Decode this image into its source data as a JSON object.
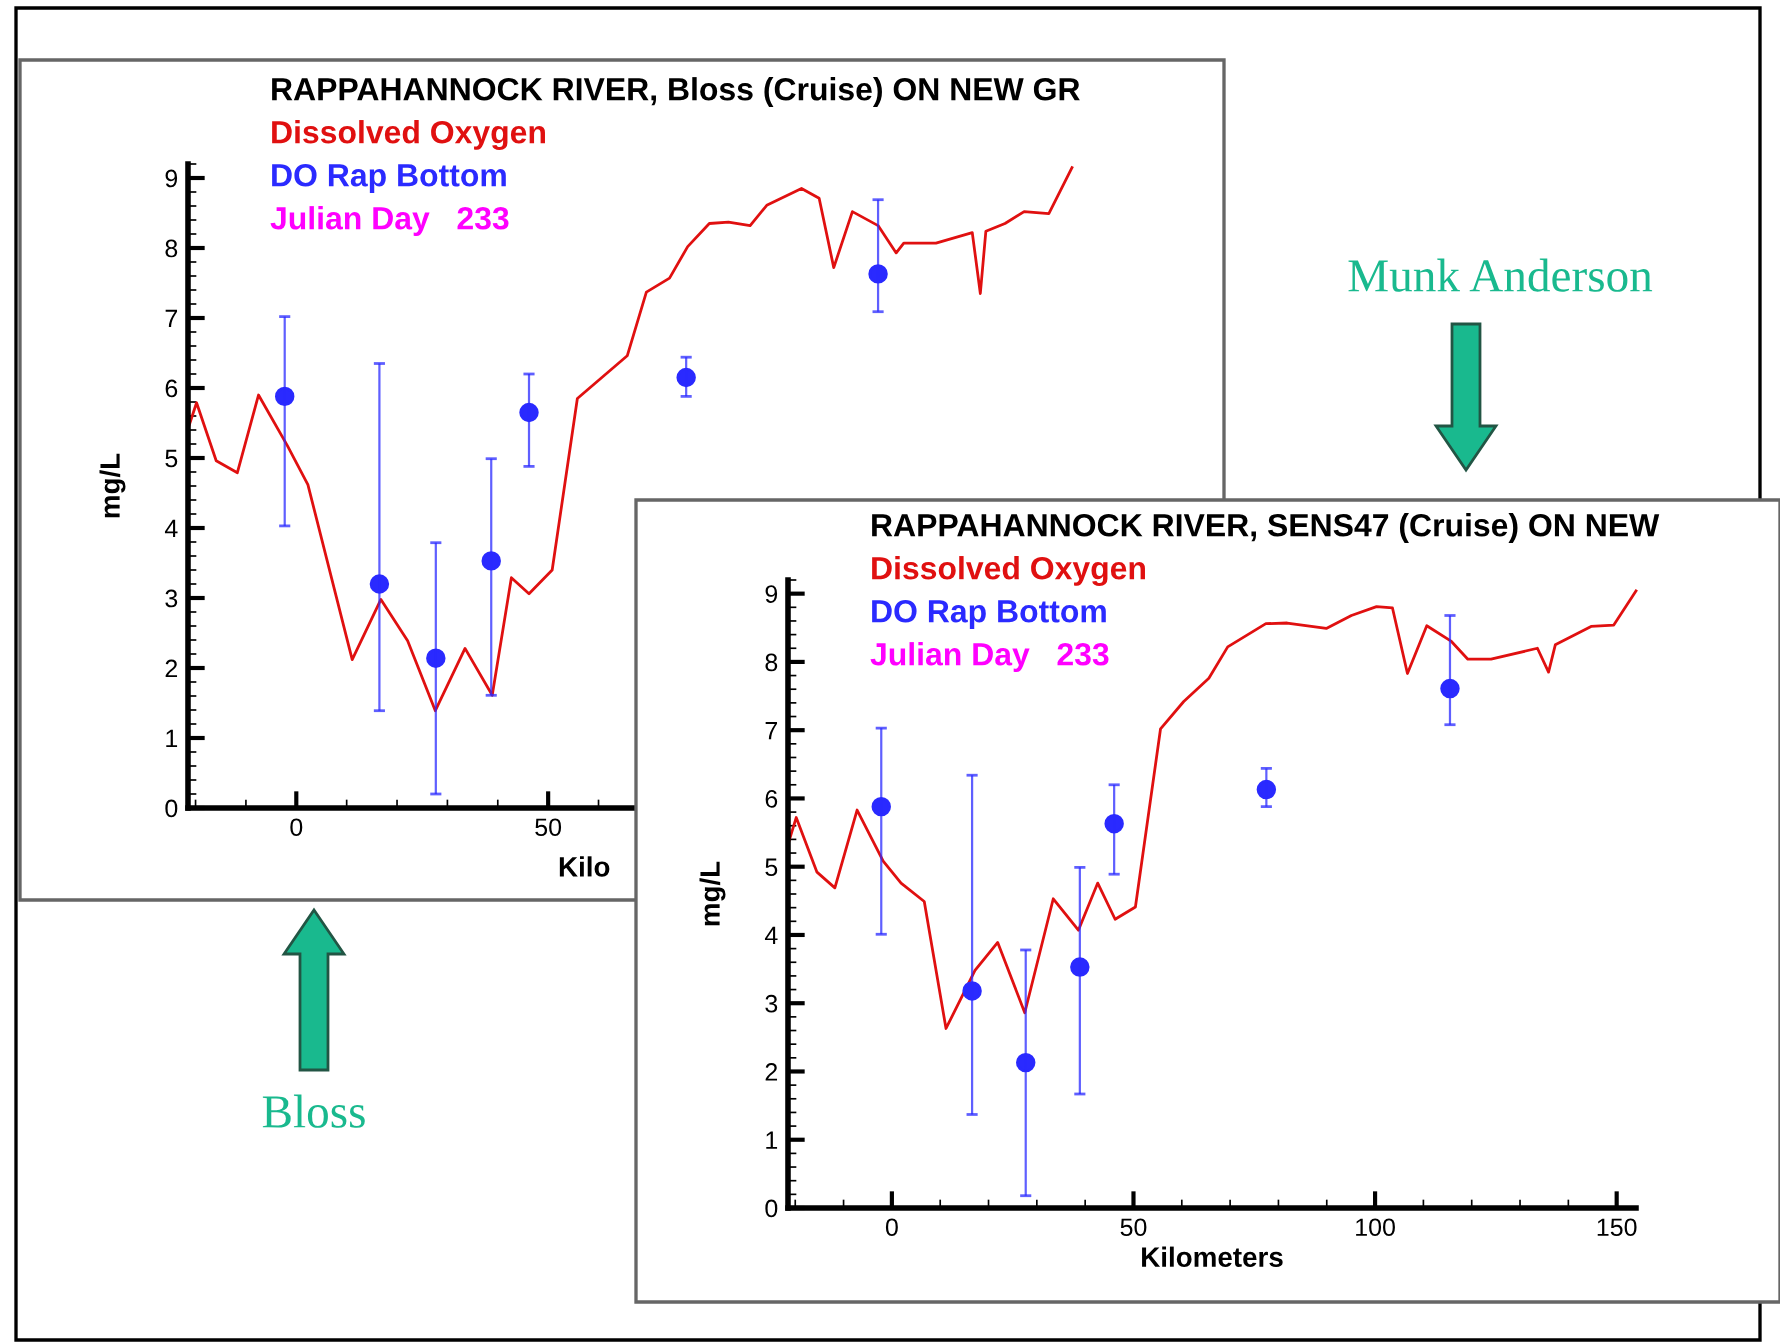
{
  "chart_data": [
    {
      "type": "line",
      "title": "RAPPAHANNOCK RIVER, Bloss (Cruise) ON NEW GR",
      "xlabel": "Kilo",
      "ylabel": "mg/L",
      "xlim": [
        -21.5,
        154
      ],
      "ylim": [
        0,
        9.2
      ],
      "xticks": [
        0,
        50
      ],
      "yticks": [
        0,
        1,
        2,
        3,
        4,
        5,
        6,
        7,
        8,
        9
      ],
      "grid": false,
      "annotations": [
        "Julian Day   233",
        "Bloss"
      ],
      "series": [
        {
          "name": "Dissolved Oxygen",
          "color": "#e01010",
          "marker": "none",
          "x": [
            -21.3,
            -19.8,
            -15.9,
            -11.7,
            -7.5,
            -1.8,
            2.3,
            11.1,
            16.8,
            22.1,
            27.6,
            33.5,
            38.9,
            42.7,
            46.2,
            50.8,
            55.8,
            65.7,
            69.5,
            74.1,
            77.7,
            82.0,
            85.8,
            90.1,
            93.4,
            100.3,
            103.8,
            106.7,
            110.4,
            115.5,
            119.1,
            120.6,
            127.0,
            134.2,
            135.8,
            136.9,
            140.7,
            144.5,
            149.4,
            154.0
          ],
          "values": [
            5.46,
            5.79,
            4.96,
            4.79,
            5.9,
            5.18,
            4.62,
            2.12,
            2.98,
            2.39,
            1.39,
            2.28,
            1.61,
            3.29,
            3.06,
            3.4,
            5.85,
            6.46,
            7.37,
            7.57,
            8.02,
            8.35,
            8.37,
            8.32,
            8.61,
            8.85,
            8.71,
            7.72,
            8.52,
            8.32,
            7.93,
            8.07,
            8.07,
            8.22,
            7.35,
            8.24,
            8.35,
            8.52,
            8.49,
            9.15
          ]
        },
        {
          "name": "DO Rap Bottom",
          "type": "scatter",
          "color": "#2a2aff",
          "marker": "circle",
          "x": [
            -2.3,
            16.5,
            27.7,
            38.7,
            46.2,
            77.4,
            115.5
          ],
          "values": [
            5.88,
            3.2,
            2.14,
            3.53,
            5.65,
            6.15,
            7.63
          ],
          "errors": [
            [
              4.03,
              7.02
            ],
            [
              1.39,
              6.35
            ],
            [
              0.2,
              3.79
            ],
            [
              1.61,
              4.99
            ],
            [
              4.88,
              6.2
            ],
            [
              5.88,
              6.44
            ],
            [
              7.09,
              8.69
            ]
          ]
        }
      ]
    },
    {
      "type": "line",
      "title": "RAPPAHANNOCK RIVER, SENS47 (Cruise) ON NEW",
      "xlabel": "Kilometers",
      "ylabel": "mg/L",
      "xlim": [
        -21.5,
        154
      ],
      "ylim": [
        0,
        9.2
      ],
      "xticks": [
        0,
        50,
        100,
        150
      ],
      "yticks": [
        0,
        1,
        2,
        3,
        4,
        5,
        6,
        7,
        8,
        9
      ],
      "grid": false,
      "annotations": [
        "Julian Day   233",
        "Munk Anderson"
      ],
      "series": [
        {
          "name": "Dissolved Oxygen",
          "color": "#e01010",
          "marker": "none",
          "x": [
            -21.4,
            -19.8,
            -15.5,
            -11.8,
            -7.2,
            -1.8,
            1.9,
            6.7,
            11.2,
            17.2,
            21.9,
            27.5,
            33.4,
            38.6,
            42.6,
            46.2,
            50.4,
            55.6,
            60.4,
            65.6,
            69.5,
            77.4,
            81.8,
            89.9,
            95.1,
            100.3,
            103.6,
            106.7,
            110.7,
            115.8,
            119.2,
            124.0,
            133.6,
            135.9,
            137.3,
            144.7,
            149.4,
            154.0
          ],
          "values": [
            5.35,
            5.72,
            4.92,
            4.69,
            5.83,
            5.08,
            4.76,
            4.49,
            2.63,
            3.48,
            3.89,
            2.86,
            4.53,
            4.07,
            4.76,
            4.23,
            4.41,
            7.02,
            7.42,
            7.76,
            8.22,
            8.56,
            8.57,
            8.49,
            8.68,
            8.81,
            8.79,
            7.83,
            8.53,
            8.3,
            8.04,
            8.04,
            8.2,
            7.85,
            8.25,
            8.52,
            8.54,
            9.04
          ]
        },
        {
          "name": "DO Rap Bottom",
          "type": "scatter",
          "color": "#2a2aff",
          "marker": "circle",
          "x": [
            -2.2,
            16.6,
            27.7,
            38.9,
            46.0,
            77.5,
            115.5
          ],
          "values": [
            5.88,
            3.18,
            2.13,
            3.53,
            5.63,
            6.13,
            7.61
          ],
          "errors": [
            [
              4.01,
              7.03
            ],
            [
              1.37,
              6.34
            ],
            [
              0.18,
              3.78
            ],
            [
              1.67,
              4.99
            ],
            [
              4.89,
              6.2
            ],
            [
              5.88,
              6.44
            ],
            [
              7.08,
              8.68
            ]
          ]
        }
      ]
    }
  ]
}
